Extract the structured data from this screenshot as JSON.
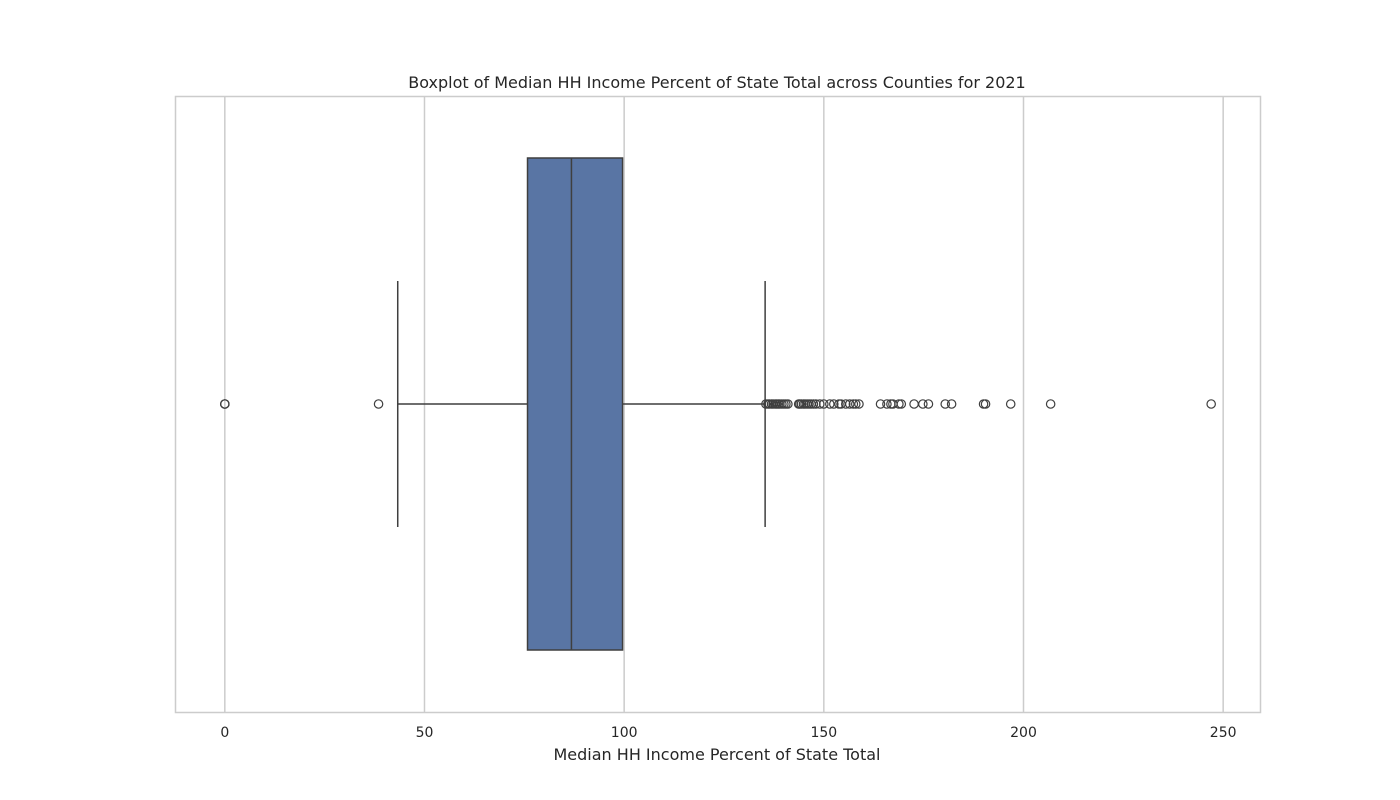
{
  "chart_data": {
    "type": "box",
    "orientation": "horizontal",
    "title": "Boxplot of Median HH Income Percent of State Total across Counties for 2021",
    "xlabel": "Median HH Income Percent of State Total",
    "ylabel": "",
    "xlim": [
      -12.35,
      259.35
    ],
    "xticks": [
      0,
      50,
      100,
      150,
      200,
      250
    ],
    "xtick_labels": [
      "0",
      "50",
      "100",
      "150",
      "200",
      "250"
    ],
    "grid": "vertical",
    "box": {
      "whisker_low": 43.3,
      "q1": 75.8,
      "median": 86.8,
      "q3": 99.6,
      "whisker_high": 135.3,
      "color": "#5975a4"
    },
    "outliers": [
      0,
      0,
      0,
      38.5,
      135.5,
      136.0,
      136.4,
      136.9,
      137.3,
      137.8,
      138.2,
      138.6,
      139.0,
      139.5,
      140.0,
      140.5,
      141.0,
      143.7,
      144.0,
      144.4,
      144.9,
      145.3,
      145.8,
      146.3,
      146.8,
      147.4,
      148.0,
      149.0,
      150.0,
      151.5,
      152.5,
      153.8,
      154.3,
      155.5,
      156.5,
      157.4,
      158.0,
      158.8,
      164.2,
      165.8,
      166.8,
      167.3,
      168.8,
      169.4,
      172.6,
      174.8,
      176.2,
      180.4,
      182.0,
      190.0,
      190.5,
      196.8,
      206.8,
      247.0
    ],
    "colors": {
      "axes_edge": "#cccccc",
      "grid": "#cccccc",
      "lines": "#3f3f3f"
    }
  }
}
